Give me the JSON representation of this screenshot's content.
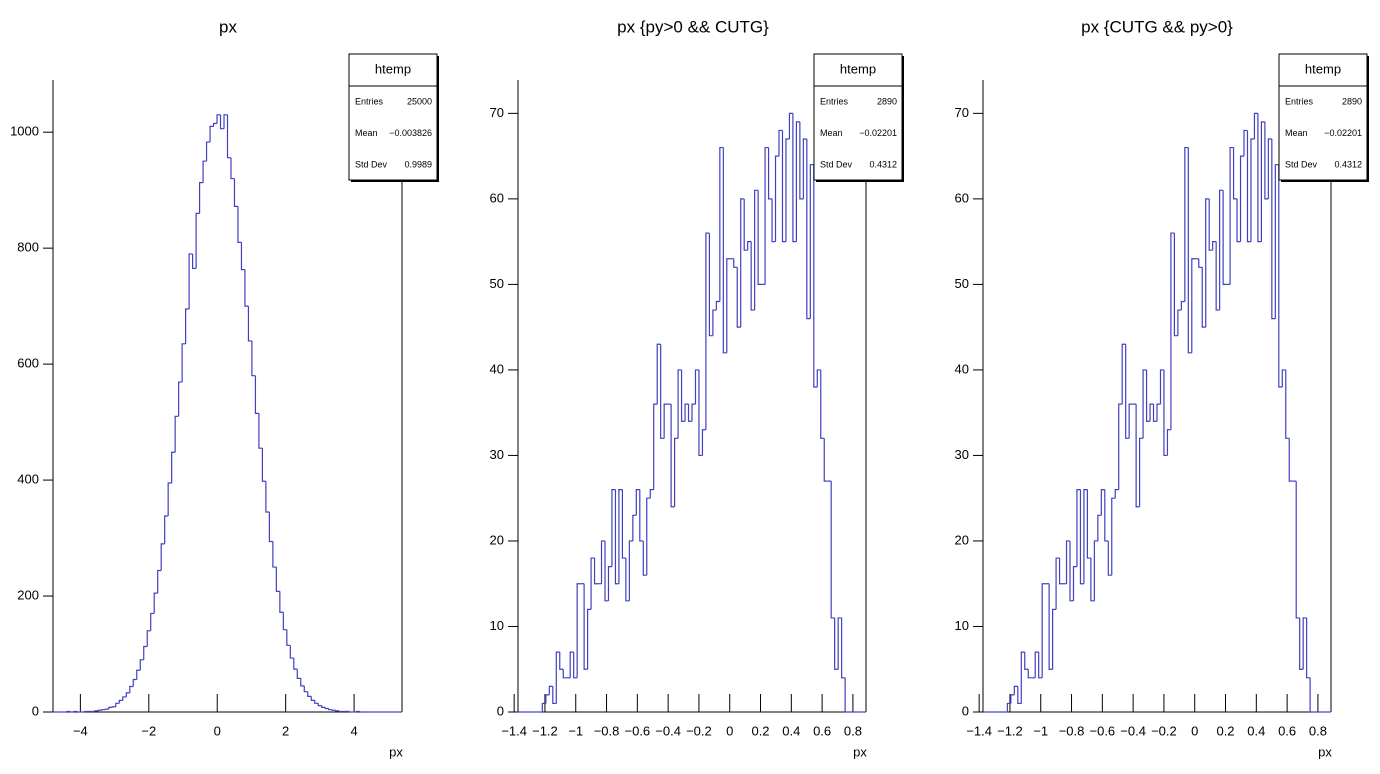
{
  "chart_data": [
    {
      "type": "histogram",
      "title": "px",
      "x_label": "px",
      "color": "#4040c0",
      "xlim": [
        -4.8,
        5.4
      ],
      "ylim": [
        0,
        1090
      ],
      "xticks": [
        {
          "value": -4,
          "label": "−4"
        },
        {
          "value": -2,
          "label": "−2"
        },
        0,
        2,
        4
      ],
      "yticks": [
        0,
        200,
        400,
        600,
        800,
        1000
      ],
      "bins": [
        -4.8,
        -4.698,
        -4.596,
        -4.494,
        -4.392,
        -4.29,
        -4.188,
        -4.086,
        -3.984,
        -3.882,
        -3.78,
        -3.678,
        -3.576,
        -3.474,
        -3.372,
        -3.27,
        -3.168,
        -3.066,
        -2.964,
        -2.862,
        -2.76,
        -2.658,
        -2.556,
        -2.454,
        -2.352,
        -2.25,
        -2.148,
        -2.046,
        -1.944,
        -1.842,
        -1.74,
        -1.638,
        -1.536,
        -1.434,
        -1.332,
        -1.23,
        -1.128,
        -1.026,
        -0.924,
        -0.822,
        -0.72,
        -0.618,
        -0.516,
        -0.414,
        -0.312,
        -0.21,
        -0.108,
        -0.006,
        0.096,
        0.198,
        0.3,
        0.402,
        0.504,
        0.606,
        0.708,
        0.81,
        0.912,
        1.014,
        1.116,
        1.218,
        1.32,
        1.422,
        1.524,
        1.626,
        1.728,
        1.83,
        1.932,
        2.034,
        2.136,
        2.238,
        2.34,
        2.442,
        2.544,
        2.646,
        2.748,
        2.85,
        2.952,
        3.054,
        3.156,
        3.258,
        3.36,
        3.462,
        3.564,
        3.666,
        3.768,
        3.87,
        3.972,
        4.074,
        4.176,
        4.278,
        4.38,
        4.482,
        4.584,
        4.686,
        4.788,
        4.89,
        4.992,
        5.094,
        5.196,
        5.298,
        5.4
      ],
      "values": [
        0,
        0,
        0,
        0,
        1,
        0,
        1,
        0,
        0,
        1,
        1,
        1,
        2,
        3,
        4,
        5,
        8,
        9,
        15,
        20,
        26,
        33,
        44,
        56,
        72,
        90,
        113,
        140,
        170,
        205,
        244,
        290,
        338,
        395,
        448,
        510,
        569,
        635,
        695,
        790,
        765,
        860,
        913,
        950,
        983,
        1010,
        1015,
        1030,
        1006,
        1030,
        956,
        920,
        872,
        810,
        763,
        700,
        640,
        580,
        515,
        455,
        398,
        345,
        294,
        250,
        208,
        172,
        142,
        115,
        93,
        74,
        58,
        45,
        35,
        27,
        20,
        15,
        11,
        8,
        6,
        4,
        3,
        2,
        1,
        1,
        1,
        0,
        0,
        1,
        0,
        0,
        0,
        0,
        0,
        0,
        0,
        0,
        0,
        0,
        0,
        0
      ],
      "stats": {
        "title": "htemp",
        "rows": [
          [
            "Entries",
            "25000"
          ],
          [
            "Mean",
            "−0.003826"
          ],
          [
            "Std Dev",
            "0.9989"
          ]
        ]
      }
    },
    {
      "type": "histogram",
      "title": "px {py>0 && CUTG}",
      "x_label": "px",
      "color": "#4040c0",
      "xlim": [
        -1.375,
        0.885
      ],
      "ylim": [
        0,
        73.9
      ],
      "xticks": [
        {
          "value": -1.4,
          "label": "−1.4"
        },
        {
          "value": -1.2,
          "label": "−1.2"
        },
        {
          "value": -1,
          "label": "−1"
        },
        {
          "value": -0.8,
          "label": "−0.8"
        },
        {
          "value": -0.6,
          "label": "−0.6"
        },
        {
          "value": -0.4,
          "label": "−0.4"
        },
        {
          "value": -0.2,
          "label": "−0.2"
        },
        0,
        0.2,
        0.4,
        0.6,
        0.8
      ],
      "yticks": [
        0,
        10,
        20,
        30,
        40,
        50,
        60,
        70
      ],
      "bins": [
        -1.375,
        -1.3524,
        -1.3298,
        -1.3072,
        -1.2846,
        -1.262,
        -1.2394,
        -1.2168,
        -1.1942,
        -1.1716,
        -1.149,
        -1.1264,
        -1.1038,
        -1.0812,
        -1.0586,
        -1.036,
        -1.0134,
        -0.9908,
        -0.9682,
        -0.9456,
        -0.923,
        -0.9004,
        -0.8778,
        -0.8552,
        -0.8326,
        -0.81,
        -0.7874,
        -0.7648,
        -0.7422,
        -0.7196,
        -0.697,
        -0.6744,
        -0.6518,
        -0.6292,
        -0.6066,
        -0.584,
        -0.5614,
        -0.5388,
        -0.5162,
        -0.4936,
        -0.471,
        -0.4484,
        -0.4258,
        -0.4032,
        -0.3806,
        -0.358,
        -0.3354,
        -0.3128,
        -0.2902,
        -0.2676,
        -0.245,
        -0.2224,
        -0.1998,
        -0.1772,
        -0.1546,
        -0.132,
        -0.1094,
        -0.0868,
        -0.0642,
        -0.0416,
        -0.019,
        0.0036,
        0.0262,
        0.0488,
        0.0714,
        0.094,
        0.1166,
        0.1392,
        0.1618,
        0.1844,
        0.207,
        0.2296,
        0.2522,
        0.2748,
        0.2974,
        0.32,
        0.3426,
        0.3652,
        0.3878,
        0.4104,
        0.433,
        0.4556,
        0.4782,
        0.5008,
        0.5234,
        0.546,
        0.5686,
        0.5912,
        0.6138,
        0.6364,
        0.659,
        0.6816,
        0.7042,
        0.7268,
        0.7494,
        0.772,
        0.7946,
        0.8172,
        0.8398,
        0.8624,
        0.885
      ],
      "values": [
        0,
        0,
        0,
        0,
        0,
        0,
        0,
        1,
        2,
        3,
        1,
        7,
        5,
        4,
        4,
        7,
        4,
        15,
        15,
        5,
        12,
        18,
        15,
        15,
        20,
        13,
        17,
        26,
        15,
        26,
        18,
        13,
        20,
        23,
        26,
        20,
        16,
        25,
        26,
        36,
        43,
        32,
        36,
        36,
        24,
        32,
        40,
        34,
        36,
        34,
        36,
        40,
        30,
        33,
        56,
        44,
        47,
        48,
        66,
        42,
        53,
        53,
        52,
        45,
        60,
        54,
        55,
        47,
        61,
        50,
        50,
        66,
        60,
        55,
        65,
        68,
        55,
        67,
        70,
        55,
        69,
        60,
        67,
        46,
        64,
        38,
        40,
        32,
        27,
        27,
        11,
        5,
        11,
        4,
        0,
        0,
        0,
        0,
        0,
        0
      ],
      "stats": {
        "title": "htemp",
        "rows": [
          [
            "Entries",
            "2890"
          ],
          [
            "Mean",
            "−0.02201"
          ],
          [
            "Std Dev",
            "0.4312"
          ]
        ]
      }
    },
    {
      "type": "histogram",
      "title": "px {CUTG && py>0}",
      "x_label": "px",
      "color": "#4040c0",
      "xlim": [
        -1.375,
        0.885
      ],
      "ylim": [
        0,
        73.9
      ],
      "xticks": [
        {
          "value": -1.4,
          "label": "−1.4"
        },
        {
          "value": -1.2,
          "label": "−1.2"
        },
        {
          "value": -1,
          "label": "−1"
        },
        {
          "value": -0.8,
          "label": "−0.8"
        },
        {
          "value": -0.6,
          "label": "−0.6"
        },
        {
          "value": -0.4,
          "label": "−0.4"
        },
        {
          "value": -0.2,
          "label": "−0.2"
        },
        0,
        0.2,
        0.4,
        0.6,
        0.8
      ],
      "yticks": [
        0,
        10,
        20,
        30,
        40,
        50,
        60,
        70
      ],
      "bins": [
        -1.375,
        -1.3524,
        -1.3298,
        -1.3072,
        -1.2846,
        -1.262,
        -1.2394,
        -1.2168,
        -1.1942,
        -1.1716,
        -1.149,
        -1.1264,
        -1.1038,
        -1.0812,
        -1.0586,
        -1.036,
        -1.0134,
        -0.9908,
        -0.9682,
        -0.9456,
        -0.923,
        -0.9004,
        -0.8778,
        -0.8552,
        -0.8326,
        -0.81,
        -0.7874,
        -0.7648,
        -0.7422,
        -0.7196,
        -0.697,
        -0.6744,
        -0.6518,
        -0.6292,
        -0.6066,
        -0.584,
        -0.5614,
        -0.5388,
        -0.5162,
        -0.4936,
        -0.471,
        -0.4484,
        -0.4258,
        -0.4032,
        -0.3806,
        -0.358,
        -0.3354,
        -0.3128,
        -0.2902,
        -0.2676,
        -0.245,
        -0.2224,
        -0.1998,
        -0.1772,
        -0.1546,
        -0.132,
        -0.1094,
        -0.0868,
        -0.0642,
        -0.0416,
        -0.019,
        0.0036,
        0.0262,
        0.0488,
        0.0714,
        0.094,
        0.1166,
        0.1392,
        0.1618,
        0.1844,
        0.207,
        0.2296,
        0.2522,
        0.2748,
        0.2974,
        0.32,
        0.3426,
        0.3652,
        0.3878,
        0.4104,
        0.433,
        0.4556,
        0.4782,
        0.5008,
        0.5234,
        0.546,
        0.5686,
        0.5912,
        0.6138,
        0.6364,
        0.659,
        0.6816,
        0.7042,
        0.7268,
        0.7494,
        0.772,
        0.7946,
        0.8172,
        0.8398,
        0.8624,
        0.885
      ],
      "values": [
        0,
        0,
        0,
        0,
        0,
        0,
        0,
        1,
        2,
        3,
        1,
        7,
        5,
        4,
        4,
        7,
        4,
        15,
        15,
        5,
        12,
        18,
        15,
        15,
        20,
        13,
        17,
        26,
        15,
        26,
        18,
        13,
        20,
        23,
        26,
        20,
        16,
        25,
        26,
        36,
        43,
        32,
        36,
        36,
        24,
        32,
        40,
        34,
        36,
        34,
        36,
        40,
        30,
        33,
        56,
        44,
        47,
        48,
        66,
        42,
        53,
        53,
        52,
        45,
        60,
        54,
        55,
        47,
        61,
        50,
        50,
        66,
        60,
        55,
        65,
        68,
        55,
        67,
        70,
        55,
        69,
        60,
        67,
        46,
        64,
        38,
        40,
        32,
        27,
        27,
        11,
        5,
        11,
        4,
        0,
        0,
        0,
        0,
        0,
        0
      ],
      "stats": {
        "title": "htemp",
        "rows": [
          [
            "Entries",
            "2890"
          ],
          [
            "Mean",
            "−0.02201"
          ],
          [
            "Std Dev",
            "0.4312"
          ]
        ]
      }
    }
  ]
}
